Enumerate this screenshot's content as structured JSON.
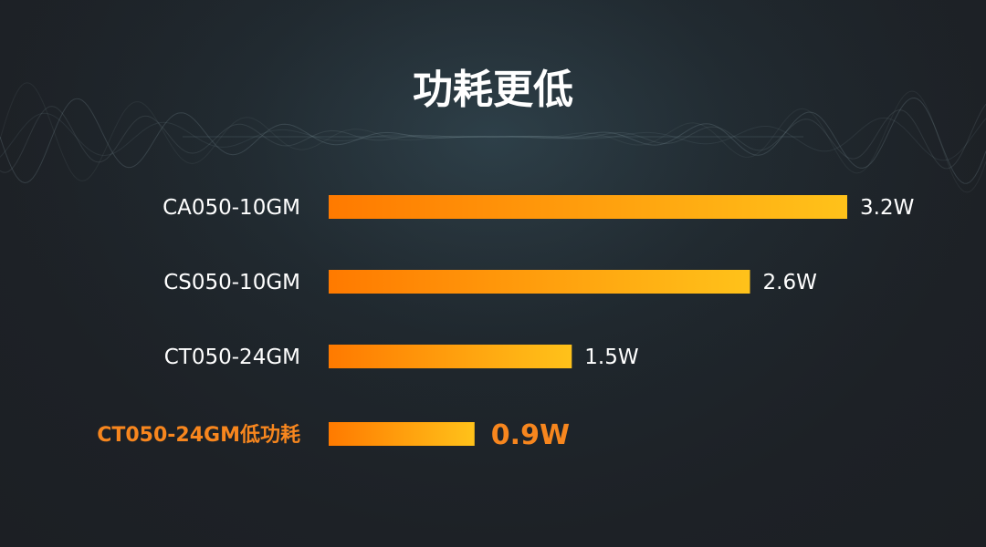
{
  "chart_data": {
    "type": "bar",
    "orientation": "horizontal",
    "title": "功耗更低",
    "categories": [
      "CA050-10GM",
      "CS050-10GM",
      "CT050-24GM",
      "CT050-24GM低功耗"
    ],
    "values": [
      3.2,
      2.6,
      1.5,
      0.9
    ],
    "value_labels": [
      "3.2W",
      "2.6W",
      "1.5W",
      "0.9W"
    ],
    "unit": "W",
    "highlight_index": 3,
    "xlim": [
      0,
      3.2
    ],
    "grid": false,
    "legend": "none",
    "colors": {
      "bar_start": "#ff7a00",
      "bar_end": "#ffc21a",
      "label": "#ffffff",
      "highlight_label": "#f7861e",
      "title": "#ffffff",
      "background": "#1d2126"
    }
  }
}
